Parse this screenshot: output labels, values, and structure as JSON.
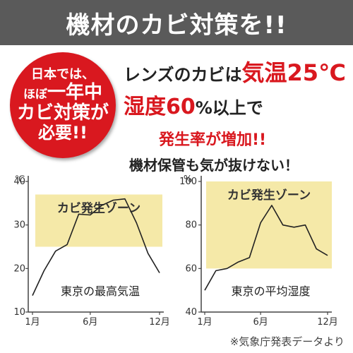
{
  "banner": {
    "title": "機材のカビ対策を!!"
  },
  "badge": {
    "line1": "日本では、",
    "line2_pre": "ほぼ",
    "line2_big": "一年中",
    "line3": "カビ対策が",
    "line4": "必要!!"
  },
  "headline": {
    "line1_pre": "レンズのカビは",
    "line1_red": "気温25℃",
    "line2_red": "湿度60",
    "line2_post": "%以上で",
    "line3": "発生率が増加!!",
    "line4": "機材保管も気が抜けない！"
  },
  "footnote": "※気象庁発表データより",
  "colors": {
    "banner": "#5a5a5a",
    "badge": "#d9181f",
    "zone": "#f5e9a8",
    "line": "#222222"
  },
  "chart_data": [
    {
      "type": "line",
      "caption": "東京の最高気温",
      "unit_label": "℃",
      "zone_label": "カビ発生ゾーン",
      "zone_range": [
        25,
        37
      ],
      "x": [
        1,
        2,
        3,
        4,
        5,
        6,
        7,
        8,
        9,
        10,
        11,
        12
      ],
      "x_ticks": [
        1,
        6,
        12
      ],
      "x_tick_labels": [
        "1月",
        "6月",
        "12月"
      ],
      "y_ticks": [
        10,
        20,
        30,
        40
      ],
      "ylim": [
        10,
        40
      ],
      "values": [
        13.8,
        19.5,
        24,
        25.5,
        32.5,
        32.3,
        34.5,
        35.7,
        36,
        30.5,
        23.5,
        19
      ]
    },
    {
      "type": "line",
      "caption": "東京の平均湿度",
      "unit_label": "%",
      "zone_label": "カビ発生ゾーン",
      "zone_range": [
        60,
        100
      ],
      "x": [
        1,
        2,
        3,
        4,
        5,
        6,
        7,
        8,
        9,
        10,
        11,
        12
      ],
      "x_ticks": [
        1,
        6,
        12
      ],
      "x_tick_labels": [
        "1月",
        "6月",
        "12月"
      ],
      "y_ticks": [
        40,
        60,
        80,
        100
      ],
      "ylim": [
        40,
        100
      ],
      "values": [
        50,
        59,
        60,
        63,
        65,
        81,
        89,
        80,
        79,
        80,
        69,
        66
      ]
    }
  ]
}
